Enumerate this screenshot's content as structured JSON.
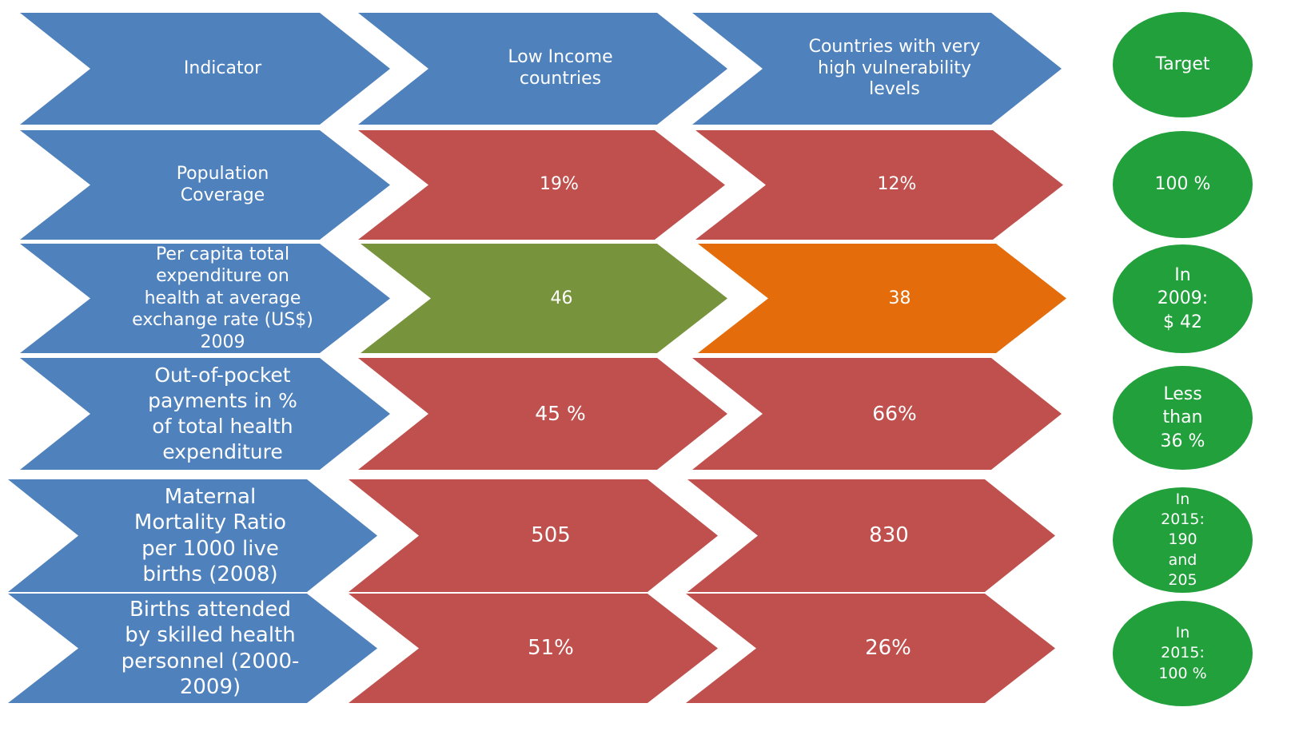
{
  "colors": {
    "header_blue": "#4F81BD",
    "bad_red": "#C0504D",
    "good_green": "#77933C",
    "warning_orange": "#E46C0A",
    "target_green": "#22A03C",
    "text": "#FFFFFF"
  },
  "header": {
    "indicator": "Indicator",
    "low_income": "Low Income\ncountries",
    "vulnerable": "Countries with very\nhigh vulnerability\nlevels",
    "target": "Target"
  },
  "rows": [
    {
      "indicator": "Population\nCoverage",
      "low_income": "19%",
      "low_income_status": "red",
      "vulnerable": "12%",
      "vulnerable_status": "red",
      "target": "100 %"
    },
    {
      "indicator": "Per capita total\nexpenditure on\nhealth at average\nexchange rate (US$)\n2009",
      "low_income": "46",
      "low_income_status": "green",
      "vulnerable": "38",
      "vulnerable_status": "orange",
      "target": "In\n2009:\n$ 42"
    },
    {
      "indicator": "Out-of-pocket\npayments in %\nof total health\nexpenditure",
      "low_income": "45 %",
      "low_income_status": "red",
      "vulnerable": "66%",
      "vulnerable_status": "red",
      "target": "Less\nthan\n36 %"
    },
    {
      "indicator": "Maternal\nMortality Ratio\nper 1000 live\nbirths (2008)",
      "low_income": "505",
      "low_income_status": "red",
      "vulnerable": "830",
      "vulnerable_status": "red",
      "target": "In\n2015:\n190\nand\n205"
    },
    {
      "indicator": "Births  attended\nby skilled health\npersonnel (2000-\n2009)",
      "low_income": "51%",
      "low_income_status": "red",
      "vulnerable": "26%",
      "vulnerable_status": "red",
      "target": "In\n2015:\n100  %"
    }
  ]
}
